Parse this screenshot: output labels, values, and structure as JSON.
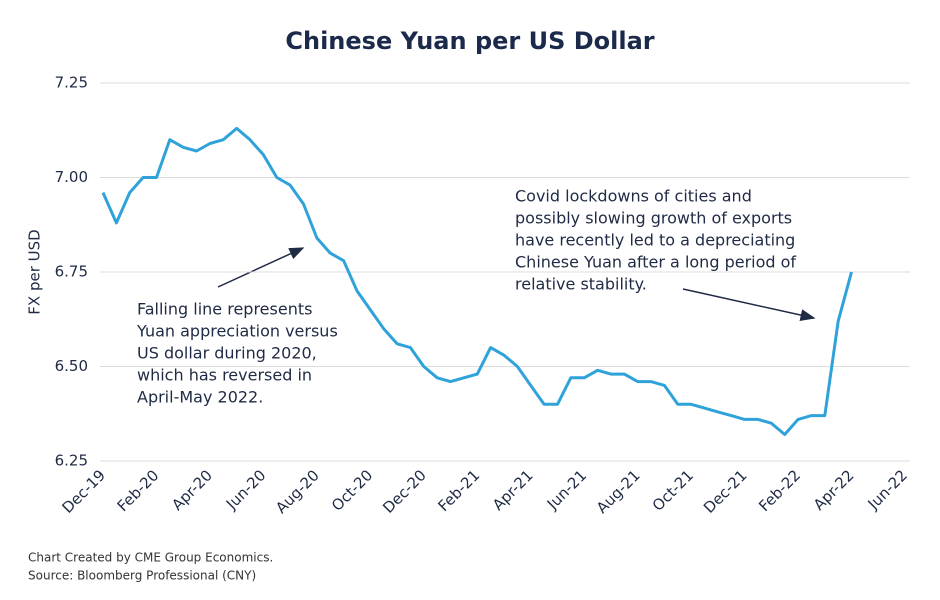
{
  "chart_data": {
    "type": "line",
    "title": "Chinese Yuan per US Dollar",
    "y_label": "FX per USD",
    "categories": [
      "Dec-19",
      null,
      null,
      null,
      "Feb-20",
      null,
      null,
      null,
      "Apr-20",
      null,
      null,
      null,
      "Jun-20",
      null,
      null,
      null,
      "Aug-20",
      null,
      null,
      null,
      "Oct-20",
      null,
      null,
      null,
      "Dec-20",
      null,
      null,
      null,
      "Feb-21",
      null,
      null,
      null,
      "Apr-21",
      null,
      null,
      null,
      "Jun-21",
      null,
      null,
      null,
      "Aug-21",
      null,
      null,
      null,
      "Oct-21",
      null,
      null,
      null,
      "Dec-21",
      null,
      null,
      null,
      "Feb-22",
      null,
      null,
      null,
      "Apr-22",
      null,
      null,
      null,
      "Jun-22"
    ],
    "series": [
      {
        "name": "CNY",
        "color": "#2fa3d9",
        "values": [
          6.96,
          6.88,
          6.96,
          7.0,
          7.0,
          7.1,
          7.08,
          7.07,
          7.09,
          7.1,
          7.13,
          7.1,
          7.06,
          7.0,
          6.98,
          6.93,
          6.84,
          6.8,
          6.78,
          6.7,
          6.65,
          6.6,
          6.56,
          6.55,
          6.5,
          6.47,
          6.46,
          6.47,
          6.48,
          6.55,
          6.53,
          6.5,
          6.45,
          6.4,
          6.4,
          6.47,
          6.47,
          6.49,
          6.48,
          6.48,
          6.46,
          6.46,
          6.45,
          6.4,
          6.4,
          6.39,
          6.38,
          6.37,
          6.36,
          6.36,
          6.35,
          6.32,
          6.36,
          6.37,
          6.37,
          6.62,
          6.75,
          null,
          null,
          null,
          null
        ]
      }
    ],
    "ylim": [
      6.25,
      7.25
    ],
    "yticks": [
      6.25,
      {
        "value": 6.5,
        "label": "6.50"
      },
      6.75,
      {
        "value": 7.0,
        "label": "7.00"
      },
      7.25
    ],
    "grid": true,
    "annotations": [
      {
        "lines": [
          "Falling line represents",
          "Yuan appreciation versus",
          "US dollar during 2020,",
          "which has reversed in",
          "April-May 2022."
        ]
      },
      {
        "lines": [
          "Covid lockdowns of cities and",
          "possibly slowing growth of exports",
          "have recently led to a depreciating",
          "Chinese Yuan after a long period of",
          "relative stability."
        ]
      }
    ],
    "footer": [
      "Chart Created by CME Group Economics.",
      "Source:  Bloomberg Professional (CNY)"
    ]
  }
}
